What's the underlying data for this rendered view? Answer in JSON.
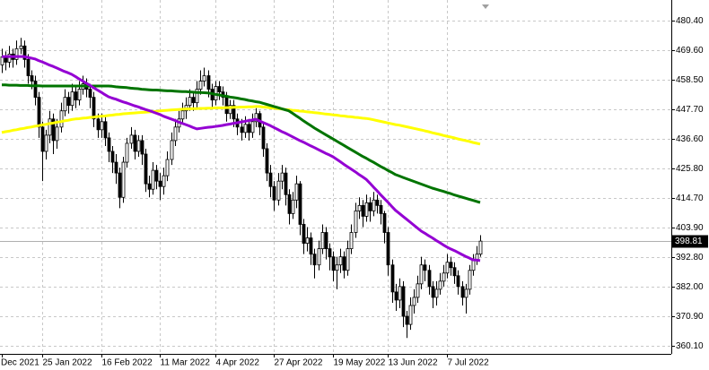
{
  "chart_data": {
    "type": "candlestick",
    "categories": [
      "Dec 2021",
      null,
      null,
      null,
      null,
      null,
      null,
      null,
      null,
      null,
      null,
      "25 Jan 2022",
      null,
      null,
      null,
      null,
      null,
      null,
      null,
      null,
      null,
      null,
      null,
      null,
      null,
      null,
      null,
      "16 Feb 2022",
      null,
      null,
      null,
      null,
      null,
      null,
      null,
      null,
      null,
      null,
      null,
      null,
      null,
      null,
      null,
      "11 Mar 2022",
      null,
      null,
      null,
      null,
      null,
      null,
      null,
      null,
      null,
      null,
      null,
      null,
      null,
      null,
      "4 Apr 2022",
      null,
      null,
      null,
      null,
      null,
      null,
      null,
      null,
      null,
      null,
      null,
      null,
      null,
      null,
      null,
      "27 Apr 2022",
      null,
      null,
      null,
      null,
      null,
      null,
      null,
      null,
      null,
      null,
      null,
      null,
      null,
      null,
      null,
      "19 May 2022",
      null,
      null,
      null,
      null,
      null,
      null,
      null,
      null,
      null,
      null,
      null,
      null,
      null,
      null,
      "13 Jun 2022",
      null,
      null,
      null,
      null,
      null,
      null,
      null,
      null,
      null,
      null,
      null,
      null,
      null,
      null,
      null,
      "7 Jul 2022",
      null,
      null,
      null,
      null,
      null,
      null,
      null,
      null,
      null
    ],
    "open": [
      464,
      467,
      465,
      468,
      466,
      470,
      471,
      466,
      460,
      458,
      452,
      441,
      432,
      438,
      444,
      436,
      441,
      447,
      452,
      449,
      454,
      451,
      455,
      457,
      455,
      452,
      444,
      440,
      443,
      437,
      432,
      428,
      424,
      415,
      428,
      435,
      438,
      432,
      436,
      431,
      420,
      418,
      425,
      421,
      419,
      423,
      429,
      436,
      441,
      444,
      447,
      449,
      452,
      450,
      455,
      458,
      460,
      455,
      451,
      456,
      454,
      452,
      446,
      449,
      444,
      441,
      439,
      442,
      439,
      443,
      446,
      441,
      433,
      424,
      419,
      414,
      421,
      424,
      416,
      409,
      414,
      420,
      405,
      398,
      400,
      394,
      390,
      396,
      402,
      396,
      393,
      388,
      390,
      393,
      388,
      396,
      402,
      410,
      412,
      408,
      413,
      410,
      414,
      412,
      409,
      402,
      390,
      380,
      377,
      382,
      371,
      368,
      375,
      378,
      383,
      390,
      388,
      382,
      378,
      381,
      384,
      387,
      391,
      389,
      386,
      382,
      378,
      381,
      388,
      392,
      394
    ],
    "high": [
      470,
      469,
      471,
      470,
      473,
      474,
      473,
      468,
      462,
      460,
      454,
      443,
      440,
      447,
      446,
      444,
      450,
      455,
      454,
      457,
      456,
      458,
      460,
      459,
      457,
      454,
      446,
      446,
      445,
      439,
      434,
      431,
      426,
      430,
      437,
      441,
      440,
      438,
      438,
      433,
      423,
      428,
      427,
      424,
      426,
      432,
      439,
      444,
      447,
      450,
      452,
      455,
      454,
      458,
      462,
      463,
      462,
      457,
      458,
      458,
      456,
      454,
      451,
      451,
      446,
      444,
      445,
      444,
      446,
      448,
      447,
      443,
      435,
      427,
      421,
      424,
      427,
      426,
      418,
      417,
      423,
      421,
      407,
      404,
      402,
      396,
      399,
      405,
      404,
      398,
      395,
      393,
      396,
      395,
      399,
      405,
      413,
      415,
      414,
      416,
      415,
      417,
      416,
      414,
      410,
      404,
      392,
      383,
      385,
      384,
      373,
      378,
      381,
      386,
      393,
      392,
      390,
      384,
      384,
      387,
      390,
      394,
      393,
      391,
      388,
      384,
      383,
      390,
      394,
      397,
      401
    ],
    "low": [
      461,
      462,
      463,
      463,
      464,
      468,
      463,
      457,
      455,
      449,
      437,
      421,
      429,
      435,
      431,
      433,
      439,
      445,
      446,
      447,
      448,
      449,
      453,
      452,
      448,
      441,
      437,
      437,
      434,
      428,
      424,
      420,
      411,
      413,
      426,
      433,
      429,
      430,
      427,
      417,
      415,
      416,
      418,
      414,
      416,
      421,
      427,
      434,
      439,
      442,
      444,
      447,
      447,
      448,
      453,
      456,
      452,
      448,
      449,
      451,
      449,
      443,
      444,
      441,
      438,
      436,
      437,
      436,
      437,
      441,
      438,
      430,
      421,
      415,
      410,
      412,
      418,
      412,
      405,
      407,
      411,
      401,
      394,
      395,
      390,
      385,
      388,
      394,
      392,
      388,
      384,
      381,
      387,
      385,
      386,
      394,
      400,
      407,
      404,
      406,
      406,
      408,
      409,
      405,
      398,
      386,
      376,
      373,
      374,
      367,
      363,
      366,
      372,
      376,
      381,
      384,
      379,
      374,
      375,
      379,
      382,
      385,
      386,
      383,
      379,
      375,
      372,
      379,
      386,
      390,
      393
    ],
    "close": [
      467,
      465,
      468,
      466,
      470,
      471,
      466,
      460,
      458,
      452,
      441,
      432,
      438,
      444,
      436,
      441,
      447,
      452,
      449,
      454,
      451,
      455,
      457,
      455,
      452,
      444,
      440,
      443,
      437,
      432,
      428,
      424,
      415,
      428,
      435,
      438,
      432,
      436,
      431,
      420,
      418,
      425,
      421,
      419,
      423,
      429,
      436,
      441,
      444,
      447,
      449,
      452,
      450,
      455,
      458,
      460,
      455,
      451,
      456,
      454,
      452,
      446,
      449,
      444,
      441,
      439,
      442,
      439,
      443,
      446,
      441,
      433,
      424,
      419,
      414,
      421,
      424,
      416,
      409,
      414,
      420,
      405,
      398,
      400,
      394,
      390,
      396,
      402,
      396,
      393,
      388,
      390,
      393,
      388,
      396,
      402,
      410,
      412,
      408,
      413,
      410,
      414,
      412,
      409,
      402,
      390,
      380,
      377,
      382,
      371,
      368,
      375,
      378,
      383,
      390,
      388,
      382,
      378,
      381,
      384,
      387,
      391,
      389,
      386,
      382,
      378,
      381,
      388,
      392,
      394,
      398.81
    ],
    "series": [
      {
        "color": "#ffff00",
        "values": [
          439.0,
          439.3,
          439.5,
          439.8,
          440.0,
          440.3,
          440.5,
          440.8,
          441.0,
          441.3,
          441.5,
          441.8,
          442.0,
          442.3,
          442.5,
          442.8,
          443.0,
          443.3,
          443.5,
          443.8,
          444.0,
          444.1,
          444.3,
          444.4,
          444.6,
          444.7,
          444.9,
          445.0,
          445.1,
          445.3,
          445.4,
          445.6,
          445.7,
          445.9,
          446.0,
          446.1,
          446.2,
          446.3,
          446.4,
          446.5,
          446.6,
          446.7,
          446.8,
          447.0,
          447.1,
          447.2,
          447.3,
          447.4,
          447.5,
          447.6,
          447.7,
          447.7,
          447.8,
          447.8,
          447.9,
          447.9,
          448.0,
          448.0,
          448.1,
          448.1,
          448.1,
          448.2,
          448.2,
          448.3,
          448.3,
          448.4,
          448.4,
          448.5,
          448.5,
          448.6,
          448.6,
          448.4,
          448.3,
          448.1,
          448.0,
          447.8,
          447.7,
          447.5,
          447.4,
          447.2,
          447.1,
          446.9,
          446.8,
          446.6,
          446.5,
          446.3,
          446.2,
          446.0,
          445.8,
          445.7,
          445.5,
          445.4,
          445.2,
          445.1,
          444.9,
          444.8,
          444.6,
          444.5,
          444.3,
          444.2,
          444.0,
          443.7,
          443.4,
          443.1,
          442.8,
          442.5,
          442.2,
          441.9,
          441.7,
          441.4,
          441.1,
          440.8,
          440.5,
          440.2,
          439.9,
          439.6,
          439.3,
          438.9,
          438.6,
          438.3,
          437.9,
          437.6,
          437.3,
          437.0,
          436.6,
          436.3,
          436.0,
          435.7,
          435.3,
          435.0,
          434.7
        ]
      },
      {
        "color": "#007400",
        "values": [
          456.6,
          456.6,
          456.5,
          456.5,
          456.5,
          456.4,
          456.4,
          456.4,
          456.3,
          456.3,
          456.3,
          456.2,
          456.2,
          456.2,
          456.2,
          456.2,
          456.2,
          456.2,
          456.2,
          456.2,
          456.2,
          456.2,
          456.2,
          456.2,
          456.2,
          456.2,
          456.2,
          456.2,
          456.2,
          456.2,
          456.1,
          455.9,
          455.8,
          455.7,
          455.6,
          455.4,
          455.3,
          455.2,
          455.0,
          454.9,
          454.8,
          454.7,
          454.7,
          454.6,
          454.5,
          454.4,
          454.4,
          454.3,
          454.2,
          454.1,
          454.1,
          454.0,
          453.9,
          453.8,
          453.8,
          453.7,
          453.6,
          453.4,
          453.1,
          452.9,
          452.6,
          452.4,
          452.1,
          451.9,
          451.7,
          451.4,
          451.2,
          450.9,
          450.7,
          450.4,
          450.2,
          449.8,
          449.4,
          449.0,
          448.6,
          448.2,
          447.8,
          447.4,
          447.0,
          446.1,
          445.2,
          444.3,
          443.3,
          442.4,
          441.5,
          440.6,
          439.8,
          439.0,
          438.2,
          437.4,
          436.6,
          435.8,
          435.0,
          434.2,
          433.4,
          432.6,
          431.8,
          431.0,
          430.2,
          429.5,
          428.7,
          428.0,
          427.2,
          426.4,
          425.7,
          424.9,
          424.2,
          423.4,
          422.9,
          422.4,
          421.9,
          421.4,
          420.9,
          420.4,
          419.9,
          419.4,
          418.9,
          418.4,
          418.0,
          417.6,
          417.2,
          416.8,
          416.4,
          415.9,
          415.5,
          415.1,
          414.7,
          414.3,
          413.9,
          413.5,
          413.1
        ]
      },
      {
        "color": "#9400d3",
        "values": [
          467.1,
          467.1,
          467.1,
          467.1,
          467.1,
          467.1,
          467.1,
          466.8,
          466.5,
          466.2,
          465.6,
          465.1,
          464.5,
          463.9,
          463.4,
          462.8,
          462.2,
          461.6,
          461.1,
          460.5,
          459.7,
          458.8,
          458.0,
          457.2,
          456.4,
          455.5,
          454.7,
          453.9,
          453.0,
          452.2,
          451.7,
          451.3,
          450.8,
          450.3,
          449.9,
          449.4,
          448.9,
          448.5,
          448.0,
          447.5,
          447.1,
          446.6,
          446.1,
          445.6,
          445.0,
          444.5,
          444.0,
          443.5,
          442.9,
          442.4,
          441.9,
          441.4,
          440.8,
          440.3,
          440.5,
          440.7,
          440.9,
          441.0,
          441.2,
          441.4,
          441.6,
          441.9,
          442.1,
          442.4,
          442.6,
          442.9,
          443.1,
          443.4,
          443.6,
          443.9,
          443.3,
          442.7,
          442.1,
          441.5,
          440.8,
          440.1,
          439.4,
          438.8,
          438.1,
          437.4,
          436.7,
          436.0,
          435.4,
          434.7,
          434.0,
          433.4,
          432.7,
          432.0,
          431.3,
          430.7,
          430.0,
          429.1,
          428.2,
          427.2,
          426.3,
          425.4,
          424.5,
          423.5,
          422.6,
          421.7,
          420.3,
          418.8,
          417.4,
          415.9,
          414.5,
          413.1,
          411.6,
          410.2,
          409.1,
          408.0,
          406.9,
          405.8,
          404.7,
          403.6,
          402.5,
          401.7,
          400.8,
          400.0,
          399.1,
          398.3,
          397.4,
          396.6,
          395.9,
          395.3,
          394.6,
          393.9,
          393.2,
          392.6,
          391.9,
          391.8,
          391.6
        ]
      }
    ],
    "last_price": 398.81,
    "ylim": [
      357.1,
      488.0
    ],
    "yticks": [
      {
        "value": 480.4,
        "label": "480.40"
      },
      {
        "value": 469.6,
        "label": "469.60"
      },
      {
        "value": 458.5,
        "label": "458.50"
      },
      {
        "value": 447.7,
        "label": "447.70"
      },
      {
        "value": 436.6,
        "label": "436.60"
      },
      {
        "value": 425.8,
        "label": "425.80"
      },
      {
        "value": 414.7,
        "label": "414.70"
      },
      {
        "value": 403.9,
        "label": "403.90"
      },
      {
        "value": 392.8,
        "label": "392.80"
      },
      {
        "value": 382,
        "label": "382.00"
      },
      {
        "value": 370.9,
        "label": "370.90"
      },
      {
        "value": 360.1,
        "label": "360.10"
      }
    ],
    "grid": true
  }
}
